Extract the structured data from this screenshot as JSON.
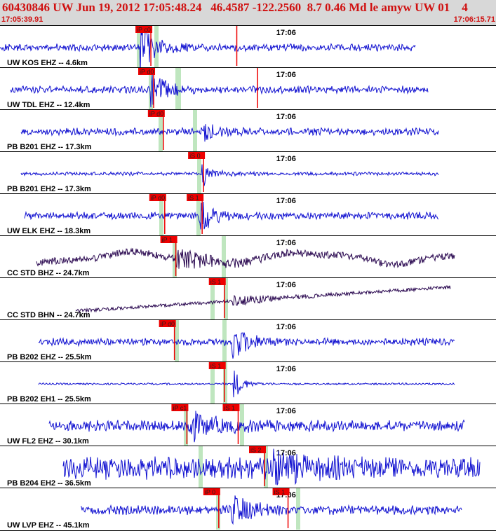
{
  "header": {
    "title": "60430846 UW Jun 19, 2012 17:05:48.24   46.4587 -122.2560  8.7 0.46 Md le amyw UW 01    4",
    "start_time": "17:05:39.91",
    "end_time": "17:06:15.71"
  },
  "chart_data": {
    "type": "line",
    "title": "60430846 UW Jun 19, 2012 17:05:48.24   46.4587 -122.2560  8.7 0.46 Md le amyw UW 01    4",
    "x_range": [
      "17:05:39.91",
      "17:06:15.71"
    ],
    "time_tick_label": "17:06",
    "colors": {
      "trace_blue": "#1010d0",
      "trace_purple": "#2a0850",
      "pick_red": "#ee0000",
      "window_green": "#bfe6bf"
    },
    "traces": [
      {
        "label": "UW KOS EHZ -- 4.6km",
        "color": "#1010d0",
        "picks": [
          {
            "label": "iP c0",
            "t": "17:05:50.8"
          },
          {
            "label": "",
            "t": "17:05:57.0"
          }
        ]
      },
      {
        "label": "UW TDL EHZ -- 12.4km",
        "color": "#1010d0",
        "picks": [
          {
            "label": "iP d0",
            "t": "17:05:51.0"
          },
          {
            "label": "",
            "t": "17:05:58.5"
          }
        ]
      },
      {
        "label": "PB B201 EHZ -- 17.3km",
        "color": "#1010d0",
        "picks": [
          {
            "label": "iP d0",
            "t": "17:05:51.7"
          }
        ]
      },
      {
        "label": "PB B201 EH2 -- 17.3km",
        "color": "#1010d0",
        "picks": [
          {
            "label": "iS 0",
            "t": "17:05:54.6"
          }
        ]
      },
      {
        "label": "UW ELK EHZ -- 18.3km",
        "color": "#1010d0",
        "picks": [
          {
            "label": "iP d0",
            "t": "17:05:51.8"
          },
          {
            "label": "iS 1",
            "t": "17:05:54.5"
          }
        ]
      },
      {
        "label": "CC STD BHZ -- 24.7km",
        "color": "#2a0850",
        "picks": [
          {
            "label": "iP 1",
            "t": "17:05:52.6"
          }
        ]
      },
      {
        "label": "CC STD BHN -- 24.7km",
        "color": "#2a0850",
        "picks": [
          {
            "label": "iS 1",
            "t": "17:05:56.1"
          }
        ]
      },
      {
        "label": "PB B202 EHZ -- 25.5km",
        "color": "#1010d0",
        "picks": [
          {
            "label": "iP d0",
            "t": "17:05:52.5"
          }
        ]
      },
      {
        "label": "PB B202 EH1 -- 25.5km",
        "color": "#1010d0",
        "picks": [
          {
            "label": "iS 1",
            "t": "17:05:56.1"
          }
        ]
      },
      {
        "label": "UW FL2 EHZ -- 30.1km",
        "color": "#1010d0",
        "picks": [
          {
            "label": "iP c1",
            "t": "17:05:53.4"
          },
          {
            "label": "iS 1",
            "t": "17:05:57.1"
          }
        ]
      },
      {
        "label": "PB B204 EH2 -- 36.5km",
        "color": "#1010d0",
        "picks": [
          {
            "label": "iS 2",
            "t": "17:05:59.0"
          }
        ]
      },
      {
        "label": "UW LVP EHZ -- 45.1km",
        "color": "#1010d0",
        "picks": [
          {
            "label": "iP 0",
            "t": "17:05:55.7"
          },
          {
            "label": "iS 1",
            "t": "17:06:00.7"
          }
        ]
      }
    ]
  }
}
